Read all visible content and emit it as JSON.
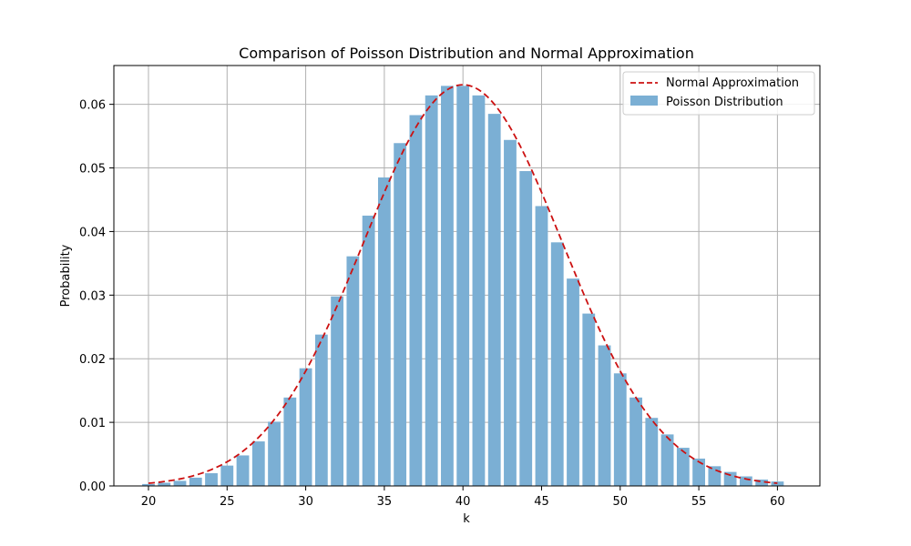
{
  "chart_data": {
    "type": "bar",
    "title": "Comparison of Poisson Distribution and Normal Approximation",
    "xlabel": "k",
    "ylabel": "Probability",
    "xlim": [
      17.8,
      62.7
    ],
    "ylim": [
      0,
      0.0661
    ],
    "grid": true,
    "legend_position": "top-right",
    "xticks": [
      20,
      25,
      30,
      35,
      40,
      45,
      50,
      55,
      60
    ],
    "xtick_labels": [
      "20",
      "25",
      "30",
      "35",
      "40",
      "45",
      "50",
      "55",
      "60"
    ],
    "yticks": [
      0,
      0.01,
      0.02,
      0.03,
      0.04,
      0.05,
      0.06
    ],
    "ytick_labels": [
      "0.00",
      "0.01",
      "0.02",
      "0.03",
      "0.04",
      "0.05",
      "0.06"
    ],
    "series": [
      {
        "name": "Poisson Distribution",
        "kind": "bar",
        "color": "#7bafd4",
        "x": [
          20,
          21,
          22,
          23,
          24,
          25,
          26,
          27,
          28,
          29,
          30,
          31,
          32,
          33,
          34,
          35,
          36,
          37,
          38,
          39,
          40,
          41,
          42,
          43,
          44,
          45,
          46,
          47,
          48,
          49,
          50,
          51,
          52,
          53,
          54,
          55,
          56,
          57,
          58,
          59,
          60
        ],
        "values": [
          0.0003,
          0.0005,
          0.0008,
          0.0013,
          0.002,
          0.0032,
          0.0048,
          0.007,
          0.0101,
          0.0139,
          0.0185,
          0.0238,
          0.0298,
          0.0361,
          0.0425,
          0.0485,
          0.0539,
          0.0583,
          0.0614,
          0.0629,
          0.0629,
          0.0614,
          0.0585,
          0.0544,
          0.0495,
          0.044,
          0.0383,
          0.0326,
          0.0271,
          0.0221,
          0.0177,
          0.0139,
          0.0107,
          0.0081,
          0.006,
          0.0043,
          0.0031,
          0.0022,
          0.0015,
          0.001,
          0.0007
        ]
      },
      {
        "name": "Normal Approximation",
        "kind": "line",
        "style": "dashed",
        "color": "#cc1111",
        "mean": 40,
        "std": 6.3246,
        "x_range": [
          20,
          60
        ]
      }
    ]
  }
}
